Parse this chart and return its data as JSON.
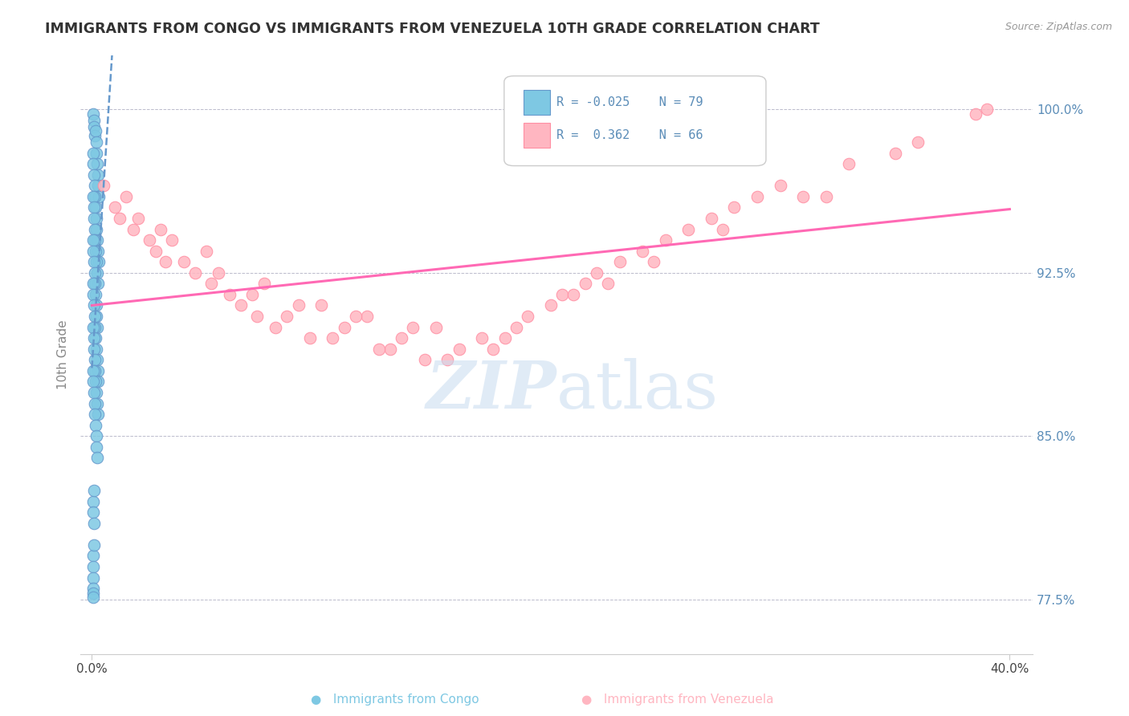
{
  "title": "IMMIGRANTS FROM CONGO VS IMMIGRANTS FROM VENEZUELA 10TH GRADE CORRELATION CHART",
  "source": "Source: ZipAtlas.com",
  "ylabel": "10th Grade",
  "xlim": [
    -0.5,
    41.0
  ],
  "ylim": [
    75.0,
    102.5
  ],
  "yticks": [
    77.5,
    85.0,
    92.5,
    100.0
  ],
  "xtick_positions": [
    0,
    40
  ],
  "xtick_labels": [
    "0.0%",
    "40.0%"
  ],
  "legend_R_congo": "-0.025",
  "legend_N_congo": "79",
  "legend_R_venezuela": "0.362",
  "legend_N_venezuela": "66",
  "color_congo": "#7EC8E3",
  "color_venezuela": "#FFB6C1",
  "color_line_congo": "#6699CC",
  "color_line_venezuela": "#FF69B4",
  "congo_x": [
    0.05,
    0.08,
    0.1,
    0.12,
    0.15,
    0.18,
    0.2,
    0.22,
    0.25,
    0.28,
    0.3,
    0.05,
    0.07,
    0.09,
    0.11,
    0.13,
    0.16,
    0.19,
    0.21,
    0.24,
    0.27,
    0.29,
    0.06,
    0.08,
    0.1,
    0.12,
    0.14,
    0.17,
    0.2,
    0.23,
    0.26,
    0.05,
    0.07,
    0.09,
    0.11,
    0.13,
    0.15,
    0.18,
    0.21,
    0.24,
    0.05,
    0.07,
    0.09,
    0.11,
    0.13,
    0.16,
    0.19,
    0.22,
    0.25,
    0.28,
    0.06,
    0.08,
    0.1,
    0.12,
    0.14,
    0.17,
    0.2,
    0.23,
    0.26,
    0.05,
    0.07,
    0.09,
    0.11,
    0.13,
    0.15,
    0.18,
    0.21,
    0.24,
    0.05,
    0.07,
    0.09,
    0.05,
    0.07,
    0.05,
    0.05,
    0.06,
    0.07,
    0.08,
    0.09
  ],
  "congo_y": [
    99.8,
    99.5,
    99.2,
    98.8,
    99.0,
    98.5,
    98.0,
    97.5,
    97.0,
    96.5,
    96.0,
    98.0,
    97.5,
    97.0,
    96.5,
    96.0,
    95.5,
    95.0,
    94.5,
    94.0,
    93.5,
    93.0,
    96.0,
    95.5,
    95.0,
    94.5,
    94.0,
    93.5,
    93.0,
    92.5,
    92.0,
    94.0,
    93.5,
    93.0,
    92.5,
    92.0,
    91.5,
    91.0,
    90.5,
    90.0,
    92.0,
    91.5,
    91.0,
    90.5,
    90.0,
    89.5,
    89.0,
    88.5,
    88.0,
    87.5,
    90.0,
    89.5,
    89.0,
    88.5,
    88.0,
    87.5,
    87.0,
    86.5,
    86.0,
    88.0,
    87.5,
    87.0,
    86.5,
    86.0,
    85.5,
    85.0,
    84.5,
    84.0,
    82.0,
    81.5,
    81.0,
    79.5,
    79.0,
    78.5,
    78.0,
    77.8,
    77.6,
    82.5,
    80.0
  ],
  "venezuela_x": [
    1.5,
    3.0,
    5.0,
    7.5,
    10.0,
    12.0,
    15.0,
    18.0,
    20.0,
    22.0,
    25.0,
    28.0,
    32.0,
    38.5,
    1.0,
    2.5,
    4.0,
    6.0,
    8.5,
    11.0,
    13.5,
    16.0,
    19.0,
    21.5,
    24.0,
    27.0,
    30.0,
    35.0,
    0.5,
    2.0,
    3.5,
    5.5,
    7.0,
    9.0,
    11.5,
    14.0,
    17.0,
    20.5,
    23.0,
    26.0,
    29.0,
    33.0,
    1.2,
    2.8,
    4.5,
    6.5,
    8.0,
    10.5,
    13.0,
    15.5,
    18.5,
    21.0,
    24.5,
    27.5,
    31.0,
    36.0,
    1.8,
    3.2,
    5.2,
    7.2,
    9.5,
    12.5,
    14.5,
    17.5,
    22.5,
    39.0
  ],
  "venezuela_y": [
    96.0,
    94.5,
    93.5,
    92.0,
    91.0,
    90.5,
    90.0,
    89.5,
    91.0,
    92.5,
    94.0,
    95.5,
    96.0,
    99.8,
    95.5,
    94.0,
    93.0,
    91.5,
    90.5,
    90.0,
    89.5,
    89.0,
    90.5,
    92.0,
    93.5,
    95.0,
    96.5,
    98.0,
    96.5,
    95.0,
    94.0,
    92.5,
    91.5,
    91.0,
    90.5,
    90.0,
    89.5,
    91.5,
    93.0,
    94.5,
    96.0,
    97.5,
    95.0,
    93.5,
    92.5,
    91.0,
    90.0,
    89.5,
    89.0,
    88.5,
    90.0,
    91.5,
    93.0,
    94.5,
    96.0,
    98.5,
    94.5,
    93.0,
    92.0,
    90.5,
    89.5,
    89.0,
    88.5,
    89.0,
    92.0,
    100.0
  ]
}
